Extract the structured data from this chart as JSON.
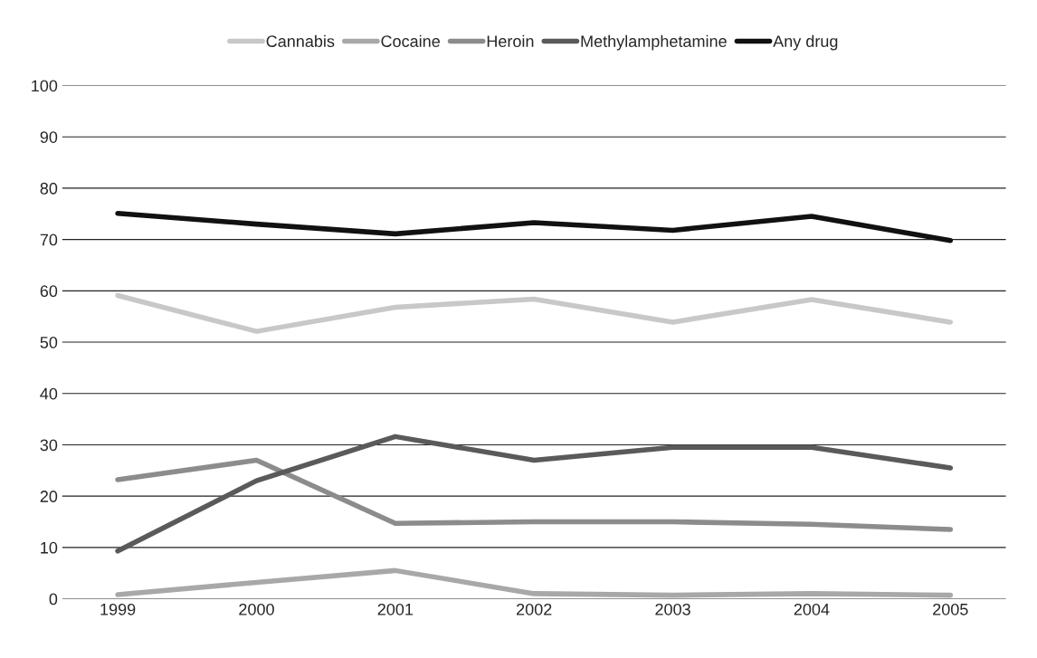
{
  "chart_data": {
    "type": "line",
    "x": [
      1999,
      2000,
      2001,
      2002,
      2003,
      2004,
      2005
    ],
    "series": [
      {
        "name": "Cannabis",
        "color": "#c8c8c8",
        "values": [
          59.1,
          52.1,
          56.8,
          58.4,
          53.9,
          58.3,
          53.9
        ]
      },
      {
        "name": "Cocaine",
        "color": "#a8a8a8",
        "values": [
          0.8,
          3.2,
          5.5,
          1,
          0.7,
          1,
          0.7
        ]
      },
      {
        "name": "Heroin",
        "color": "#8c8c8c",
        "values": [
          23.2,
          27,
          14.7,
          15,
          15,
          14.5,
          13.5
        ]
      },
      {
        "name": "Methylamphetamine",
        "color": "#5a5a5a",
        "values": [
          9.3,
          23,
          31.6,
          27,
          29.5,
          29.5,
          25.5
        ]
      },
      {
        "name": "Any drug",
        "color": "#111111",
        "values": [
          75.1,
          73,
          71.1,
          73.3,
          71.8,
          74.5,
          69.8
        ]
      }
    ],
    "xlim": [
      1998.6,
      2005.4
    ],
    "xticks": [
      1999,
      2000,
      2001,
      2002,
      2003,
      2004,
      2005
    ],
    "ylim": [
      0,
      100
    ],
    "yticks": [
      0,
      10,
      20,
      30,
      40,
      50,
      60,
      70,
      80,
      90,
      100
    ],
    "grid": "y",
    "legend": "top",
    "marker": "none",
    "line_style": "solid"
  }
}
